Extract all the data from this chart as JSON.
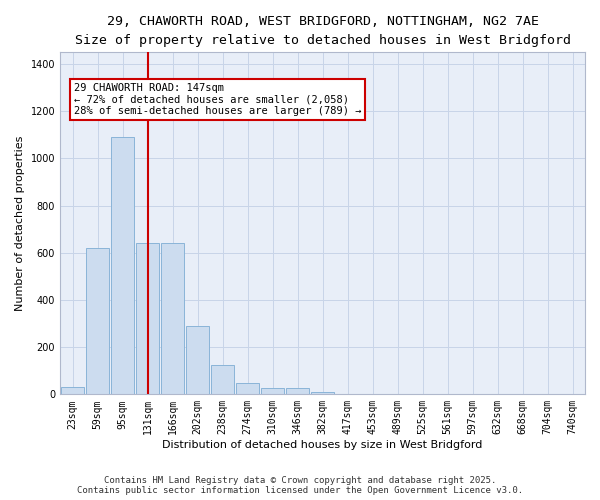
{
  "title_line1": "29, CHAWORTH ROAD, WEST BRIDGFORD, NOTTINGHAM, NG2 7AE",
  "title_line2": "Size of property relative to detached houses in West Bridgford",
  "xlabel": "Distribution of detached houses by size in West Bridgford",
  "ylabel": "Number of detached properties",
  "bar_color": "#ccdcef",
  "bar_edge_color": "#8ab4d8",
  "grid_color": "#c8d4e8",
  "background_color": "#e8eef8",
  "annotation_box_color": "#cc0000",
  "annotation_line_color": "#cc0000",
  "annotation_text_line1": "29 CHAWORTH ROAD: 147sqm",
  "annotation_text_line2": "← 72% of detached houses are smaller (2,058)",
  "annotation_text_line3": "28% of semi-detached houses are larger (789) →",
  "property_line_x": 3,
  "categories": [
    "23sqm",
    "59sqm",
    "95sqm",
    "131sqm",
    "166sqm",
    "202sqm",
    "238sqm",
    "274sqm",
    "310sqm",
    "346sqm",
    "382sqm",
    "417sqm",
    "453sqm",
    "489sqm",
    "525sqm",
    "561sqm",
    "597sqm",
    "632sqm",
    "668sqm",
    "704sqm",
    "740sqm"
  ],
  "bar_heights": [
    30,
    620,
    1090,
    640,
    640,
    290,
    125,
    50,
    25,
    25,
    10,
    0,
    0,
    0,
    0,
    0,
    0,
    0,
    0,
    0,
    0
  ],
  "ylim": [
    0,
    1450
  ],
  "yticks": [
    0,
    200,
    400,
    600,
    800,
    1000,
    1200,
    1400
  ],
  "footer_line1": "Contains HM Land Registry data © Crown copyright and database right 2025.",
  "footer_line2": "Contains public sector information licensed under the Open Government Licence v3.0.",
  "title_fontsize": 9.5,
  "subtitle_fontsize": 8.5,
  "axis_label_fontsize": 8,
  "tick_fontsize": 7,
  "annotation_fontsize": 7.5,
  "footer_fontsize": 6.5
}
